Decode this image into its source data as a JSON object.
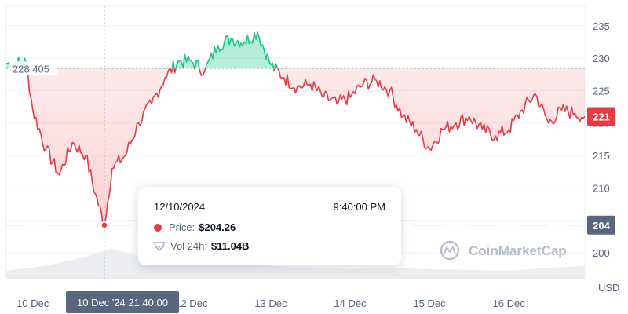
{
  "chart_data": {
    "type": "line",
    "currency": "USD",
    "ylim": [
      196,
      238
    ],
    "y_ticks": [
      200,
      205,
      210,
      215,
      220,
      225,
      230,
      235
    ],
    "x_tick_labels": [
      "10 Dec",
      "12 Dec",
      "13 Dec",
      "14 Dec",
      "15 Dec",
      "16 Dec"
    ],
    "x_axis_start": "2024-12-09T16:00",
    "x_axis_end": "2024-12-16T23:00",
    "x_tick_times": [
      "2024-12-10T00:00",
      "2024-12-12T00:00",
      "2024-12-13T00:00",
      "2024-12-14T00:00",
      "2024-12-15T00:00",
      "2024-12-16T00:00"
    ],
    "reference_price": 228.405,
    "reference_label": "228.405",
    "current_price_label": "221",
    "hover_price_label": "204",
    "hover_point": {
      "time": "2024-12-10T21:40",
      "price": 204.26
    },
    "hover_axis_label": "10 Dec '24 21:40:00",
    "colors": {
      "up": "#16c784",
      "down": "#ea3943",
      "grid": "#eff2f5",
      "hover_badge": "#58667e",
      "volume": "#e6e8ec"
    },
    "price_series": {
      "x": [
        "2024-12-09T16:00",
        "2024-12-09T22:00",
        "2024-12-10T00:00",
        "2024-12-10T04:00",
        "2024-12-10T08:00",
        "2024-12-10T12:00",
        "2024-12-10T16:00",
        "2024-12-10T19:00",
        "2024-12-10T21:40",
        "2024-12-11T00:00",
        "2024-12-11T04:00",
        "2024-12-11T08:00",
        "2024-12-11T12:00",
        "2024-12-11T16:00",
        "2024-12-11T20:00",
        "2024-12-12T00:00",
        "2024-12-12T04:00",
        "2024-12-12T08:00",
        "2024-12-12T12:00",
        "2024-12-12T16:00",
        "2024-12-12T20:00",
        "2024-12-13T00:00",
        "2024-12-13T04:00",
        "2024-12-13T08:00",
        "2024-12-13T12:00",
        "2024-12-13T16:00",
        "2024-12-13T20:00",
        "2024-12-14T00:00",
        "2024-12-14T04:00",
        "2024-12-14T08:00",
        "2024-12-14T12:00",
        "2024-12-14T16:00",
        "2024-12-14T20:00",
        "2024-12-15T00:00",
        "2024-12-15T04:00",
        "2024-12-15T08:00",
        "2024-12-15T12:00",
        "2024-12-15T16:00",
        "2024-12-15T20:00",
        "2024-12-16T00:00",
        "2024-12-16T04:00",
        "2024-12-16T08:00",
        "2024-12-16T12:00",
        "2024-12-16T16:00",
        "2024-12-16T20:00",
        "2024-12-16T23:00"
      ],
      "y": [
        229.2,
        229.4,
        222,
        216,
        212,
        217,
        215,
        209,
        204.26,
        213,
        215,
        220,
        223,
        227,
        229.5,
        229.5,
        228,
        232,
        233,
        232.5,
        234,
        229,
        227,
        225.5,
        226,
        224,
        223,
        224,
        226,
        226.5,
        225,
        221,
        219,
        216,
        219,
        220,
        221,
        219,
        218,
        219,
        222,
        224.5,
        220,
        222,
        221.5,
        221
      ]
    },
    "volume_series": {
      "x": [
        "2024-12-09T16:00",
        "2024-12-10T00:00",
        "2024-12-10T08:00",
        "2024-12-10T16:00",
        "2024-12-11T00:00",
        "2024-12-11T12:00",
        "2024-12-12T00:00",
        "2024-12-12T12:00",
        "2024-12-13T00:00",
        "2024-12-13T12:00",
        "2024-12-14T00:00",
        "2024-12-14T12:00",
        "2024-12-15T00:00",
        "2024-12-15T12:00",
        "2024-12-16T00:00",
        "2024-12-16T12:00",
        "2024-12-16T23:00"
      ],
      "y": [
        0.25,
        0.35,
        0.5,
        0.7,
        0.95,
        0.6,
        0.45,
        0.5,
        0.4,
        0.35,
        0.3,
        0.35,
        0.3,
        0.28,
        0.25,
        0.35,
        0.4
      ]
    }
  },
  "tooltip": {
    "date": "12/10/2024",
    "time": "9:40:00 PM",
    "price_label": "Price:",
    "price_value": "$204.26",
    "volume_label": "Vol 24h:",
    "volume_value": "$11.04B"
  },
  "watermark": "CoinMarketCap",
  "currency_label": "USD"
}
